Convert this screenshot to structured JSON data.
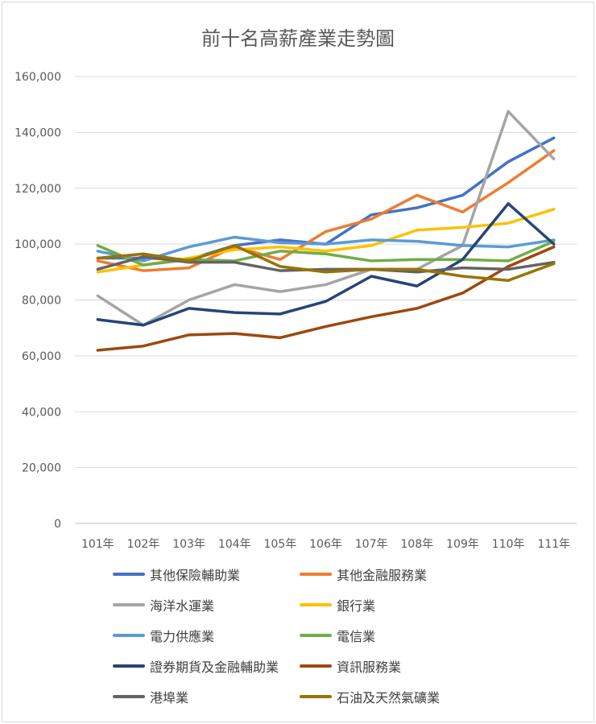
{
  "chart_data": {
    "type": "line",
    "title": "前十名高薪產業走勢圖",
    "categories": [
      "101年",
      "102年",
      "103年",
      "104年",
      "105年",
      "106年",
      "107年",
      "108年",
      "109年",
      "110年",
      "111年"
    ],
    "ylim": [
      0,
      160000
    ],
    "yticks": [
      "0",
      "20,000",
      "40,000",
      "60,000",
      "80,000",
      "100,000",
      "120,000",
      "140,000",
      "160,000"
    ],
    "ytick_values": [
      0,
      20000,
      40000,
      60000,
      80000,
      100000,
      120000,
      140000,
      160000
    ],
    "grid": true,
    "legend_position": "bottom",
    "series": [
      {
        "name": "其他保險輔助業",
        "color": "#4472C4",
        "values": [
          95000,
          95000,
          94500,
          99500,
          101500,
          100000,
          110500,
          113000,
          117500,
          129500,
          138000
        ]
      },
      {
        "name": "其他金融服務業",
        "color": "#ED7D31",
        "values": [
          94000,
          90500,
          91500,
          99000,
          94500,
          104500,
          109000,
          117500,
          111500,
          122000,
          133500
        ]
      },
      {
        "name": "海洋水運業",
        "color": "#A5A5A5",
        "values": [
          81500,
          71000,
          80000,
          85500,
          83000,
          85500,
          91000,
          91000,
          99500,
          147500,
          130500
        ]
      },
      {
        "name": "銀行業",
        "color": "#FFC000",
        "values": [
          90000,
          92500,
          95000,
          98000,
          99000,
          97500,
          99500,
          105000,
          106000,
          107500,
          112500
        ]
      },
      {
        "name": "電力供應業",
        "color": "#5B9BD5",
        "values": [
          97500,
          94000,
          99000,
          102500,
          100500,
          100000,
          101500,
          101000,
          99500,
          99000,
          101500
        ]
      },
      {
        "name": "電信業",
        "color": "#70AD47",
        "values": [
          99500,
          92500,
          94500,
          94000,
          97500,
          96500,
          94000,
          94500,
          94500,
          94000,
          101000
        ]
      },
      {
        "name": "證券期貨及金融輔助業",
        "color": "#264478",
        "values": [
          73000,
          71000,
          77000,
          75500,
          75000,
          79500,
          88500,
          85000,
          94500,
          114500,
          100000
        ]
      },
      {
        "name": "資訊服務業",
        "color": "#9E480E",
        "values": [
          62000,
          63500,
          67500,
          68000,
          66500,
          70500,
          74000,
          77000,
          82500,
          92000,
          99000
        ]
      },
      {
        "name": "港埠業",
        "color": "#636363",
        "values": [
          91000,
          95500,
          93500,
          93500,
          90500,
          91000,
          91000,
          90000,
          91500,
          91000,
          93500
        ]
      },
      {
        "name": "石油及天然氣礦業",
        "color": "#997300",
        "values": [
          95000,
          96500,
          94000,
          99500,
          92000,
          90000,
          91000,
          91000,
          88500,
          87000,
          93000
        ]
      }
    ]
  }
}
